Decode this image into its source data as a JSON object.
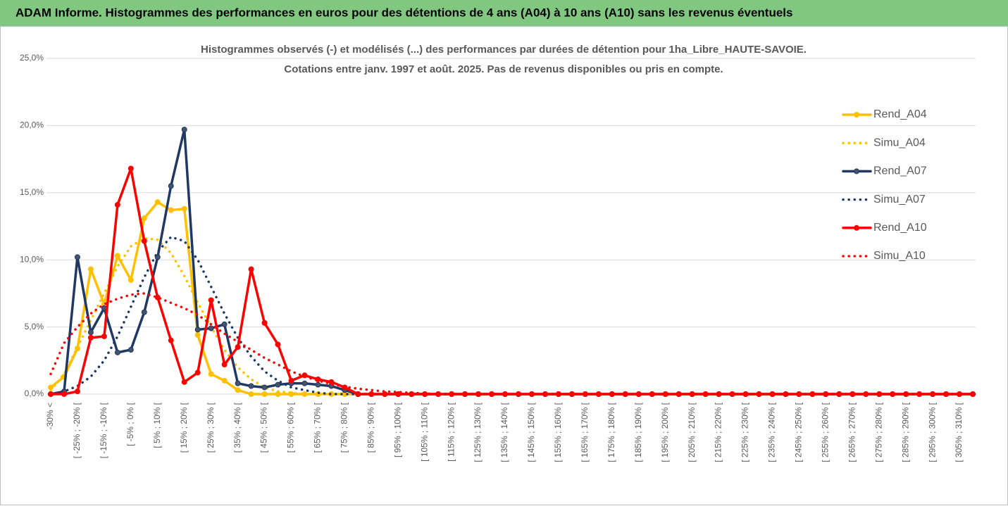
{
  "header": {
    "title": "ADAM Informe. Histogrammes des performances en euros pour des détentions de 4 ans (A04) à 10 ans (A10) sans les revenus éventuels"
  },
  "chart_data": {
    "type": "line",
    "title": "Histogrammes observés (-) et modélisés (...) des performances par durées de détention pour 1ha_Libre_HAUTE-SAVOIE.",
    "subtitle": "Cotations entre janv. 1997 et août. 2025. Pas de revenus disponibles ou pris en compte.",
    "categories": [
      "-30% <",
      null,
      "[ -25% ; -20% [",
      null,
      "[ -15% ; -10% [",
      null,
      "[ -5% ; 0% [",
      null,
      "[ 5% ; 10% [",
      null,
      "[ 15% ; 20% [",
      null,
      "[ 25% ; 30% [",
      null,
      "[ 35% ; 40% [",
      null,
      "[ 45% ; 50% [",
      null,
      "[ 55% ; 60% [",
      null,
      "[ 65% ; 70% [",
      null,
      "[ 75% ; 80% [",
      null,
      "[ 85% ; 90% [",
      null,
      "[ 95% ; 100% [",
      null,
      "[ 105% ; 110% [",
      null,
      "[ 115% ; 120% [",
      null,
      "[ 125% ; 130% [",
      null,
      "[ 135% ; 140% [",
      null,
      "[ 145% ; 150% [",
      null,
      "[ 155% ; 160% [",
      null,
      "[ 165% ; 170% [",
      null,
      "[ 175% ; 180% [",
      null,
      "[ 185% ; 190% [",
      null,
      "[ 195% ; 200% [",
      null,
      "[ 205% ; 210% [",
      null,
      "[ 215% ; 220% [",
      null,
      "[ 225% ; 230% [",
      null,
      "[ 235% ; 240% [",
      null,
      "[ 245% ; 250% [",
      null,
      "[ 255% ; 260% [",
      null,
      "[ 265% ; 270% [",
      null,
      "[ 275% ; 280% [",
      null,
      "[ 285% ; 290% [",
      null,
      "[ 295% ; 300% [",
      null,
      "[ 305% ; 310% [",
      null
    ],
    "series": [
      {
        "name": "Rend_A04",
        "color": "#ffc000",
        "style": "solid",
        "markers": true,
        "values": [
          0.5,
          1.3,
          3.4,
          9.3,
          6.7,
          10.3,
          8.5,
          13.1,
          14.3,
          13.7,
          13.8,
          4.4,
          1.5,
          1.0,
          0.3,
          0,
          0,
          0,
          0,
          0,
          0,
          0,
          0,
          0,
          0,
          0,
          0,
          0,
          0,
          0,
          0,
          0,
          0,
          0,
          0,
          0,
          0,
          0,
          0,
          0,
          0,
          0,
          0,
          0,
          0,
          0,
          0,
          0,
          0,
          0,
          0,
          0,
          0,
          0,
          0,
          0,
          0,
          0,
          0,
          0,
          0,
          0,
          0,
          0,
          0,
          0,
          0,
          0,
          0,
          0
        ]
      },
      {
        "name": "Simu_A04",
        "color": "#ffc000",
        "style": "dotted",
        "markers": false,
        "values": [
          0.3,
          1.5,
          3.5,
          5.5,
          7.5,
          9.5,
          11,
          11.6,
          11.5,
          10.5,
          8.8,
          6.8,
          5,
          3.3,
          2,
          1.1,
          0.5,
          0.2,
          0.1,
          0,
          0,
          0,
          0,
          0,
          0,
          0,
          0,
          0,
          0,
          0,
          0,
          0,
          0,
          0,
          0,
          0,
          0,
          0,
          0,
          0,
          0,
          0,
          0,
          0,
          0,
          0,
          0,
          0,
          0,
          0,
          0,
          0,
          0,
          0,
          0,
          0,
          0,
          0,
          0,
          0,
          0,
          0,
          0,
          0,
          0,
          0,
          0,
          0,
          0,
          0
        ]
      },
      {
        "name": "Rend_A07",
        "color": "#1f3864",
        "style": "solid",
        "markers": true,
        "values": [
          0,
          0.2,
          10.2,
          4.6,
          6.4,
          3.1,
          3.3,
          6.1,
          10.2,
          15.5,
          19.7,
          4.8,
          4.9,
          5.2,
          0.8,
          0.6,
          0.5,
          0.7,
          0.8,
          0.8,
          0.7,
          0.6,
          0.3,
          0,
          0,
          0,
          0,
          0,
          0,
          0,
          0,
          0,
          0,
          0,
          0,
          0,
          0,
          0,
          0,
          0,
          0,
          0,
          0,
          0,
          0,
          0,
          0,
          0,
          0,
          0,
          0,
          0,
          0,
          0,
          0,
          0,
          0,
          0,
          0,
          0,
          0,
          0,
          0,
          0,
          0,
          0,
          0,
          0,
          0,
          0
        ]
      },
      {
        "name": "Simu_A07",
        "color": "#1f3864",
        "style": "dotted",
        "markers": false,
        "values": [
          0,
          0.2,
          0.6,
          1.3,
          2.5,
          4.3,
          6.5,
          8.7,
          10.6,
          11.7,
          11.4,
          10,
          8,
          6,
          4.2,
          2.8,
          1.7,
          1,
          0.5,
          0.3,
          0.1,
          0,
          0,
          0,
          0,
          0,
          0,
          0,
          0,
          0,
          0,
          0,
          0,
          0,
          0,
          0,
          0,
          0,
          0,
          0,
          0,
          0,
          0,
          0,
          0,
          0,
          0,
          0,
          0,
          0,
          0,
          0,
          0,
          0,
          0,
          0,
          0,
          0,
          0,
          0,
          0,
          0,
          0,
          0,
          0,
          0,
          0,
          0,
          0,
          0
        ]
      },
      {
        "name": "Rend_A10",
        "color": "#ff0000",
        "style": "solid",
        "markers": true,
        "values": [
          0,
          0,
          0.2,
          4.2,
          4.3,
          14.1,
          16.8,
          11.4,
          7.2,
          4.0,
          0.9,
          1.6,
          7.0,
          2.2,
          3.5,
          9.3,
          5.3,
          3.7,
          1.0,
          1.4,
          1.1,
          0.9,
          0.5,
          0,
          0,
          0,
          0,
          0,
          0,
          0,
          0,
          0,
          0,
          0,
          0,
          0,
          0,
          0,
          0,
          0,
          0,
          0,
          0,
          0,
          0,
          0,
          0,
          0,
          0,
          0,
          0,
          0,
          0,
          0,
          0,
          0,
          0,
          0,
          0,
          0,
          0,
          0,
          0,
          0,
          0,
          0,
          0,
          0,
          0,
          0
        ]
      },
      {
        "name": "Simu_A10",
        "color": "#ff0000",
        "style": "dotted",
        "markers": false,
        "values": [
          1.5,
          3.8,
          5,
          6,
          6.7,
          7.1,
          7.4,
          7.5,
          7.2,
          6.8,
          6.4,
          5.9,
          5.2,
          4.5,
          3.9,
          3.3,
          2.7,
          2.2,
          1.7,
          1.3,
          1.0,
          0.75,
          0.55,
          0.4,
          0.3,
          0.2,
          0.15,
          0.1,
          0.05,
          0,
          0,
          0,
          0,
          0,
          0,
          0,
          0,
          0,
          0,
          0,
          0,
          0,
          0,
          0,
          0,
          0,
          0,
          0,
          0,
          0,
          0,
          0,
          0,
          0,
          0,
          0,
          0,
          0,
          0,
          0,
          0,
          0,
          0,
          0,
          0,
          0,
          0,
          0,
          0,
          0
        ]
      }
    ],
    "ylim": [
      0,
      25
    ],
    "yticks": [
      {
        "value": 0,
        "label": "0,0%"
      },
      {
        "value": 5,
        "label": "5,0%"
      },
      {
        "value": 10,
        "label": "10,0%"
      },
      {
        "value": 15,
        "label": "15,0%"
      },
      {
        "value": 20,
        "label": "20,0%"
      },
      {
        "value": 25,
        "label": "25,0%"
      }
    ],
    "grid": true,
    "legend": "right"
  }
}
